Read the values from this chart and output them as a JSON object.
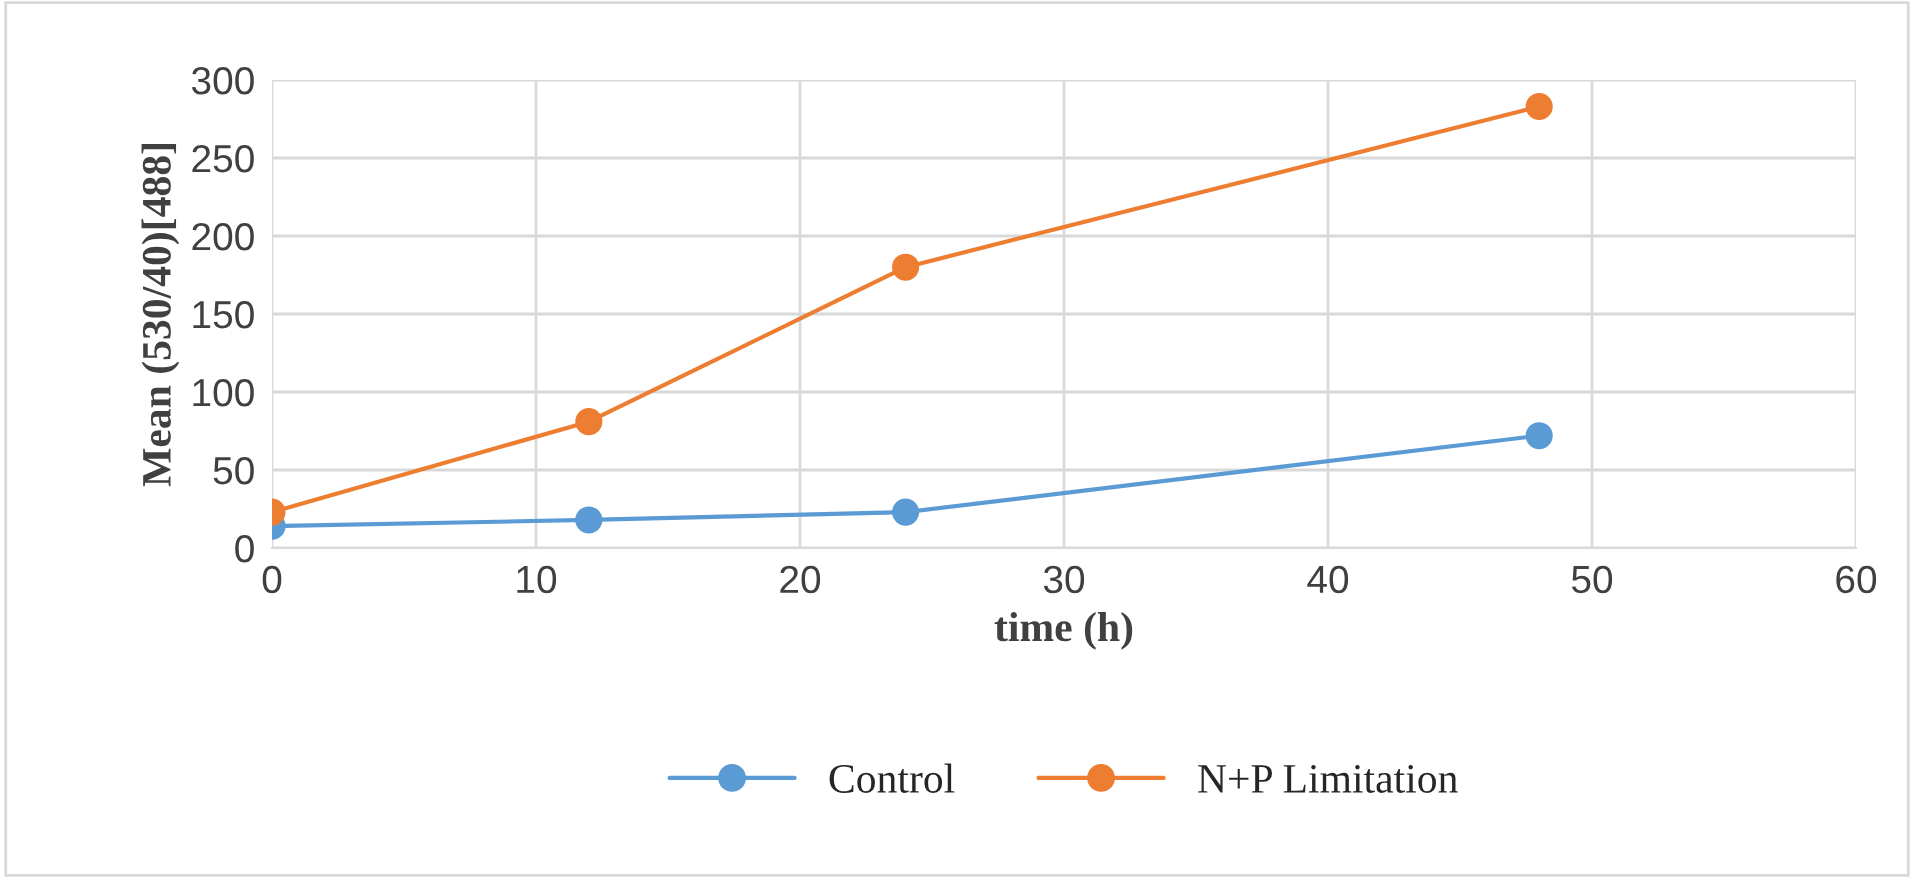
{
  "chart_data": {
    "type": "line",
    "xlabel": "time (h)",
    "ylabel": "Mean (530/40)[488]",
    "x": [
      0,
      12,
      24,
      48
    ],
    "series": [
      {
        "name": "Control",
        "color": "#5b9bd5",
        "values": [
          14,
          18,
          23,
          72
        ]
      },
      {
        "name": "N+P Limitation",
        "color": "#ed7d31",
        "values": [
          23,
          81,
          180,
          283
        ]
      }
    ],
    "xlim": [
      0,
      60
    ],
    "xticks": [
      0,
      10,
      20,
      30,
      40,
      50,
      60
    ],
    "ylim": [
      0,
      300
    ],
    "yticks": [
      0,
      50,
      100,
      150,
      200,
      250,
      300
    ],
    "grid": true,
    "legend": "bottom",
    "marker": "circle",
    "line_style": "solid"
  }
}
